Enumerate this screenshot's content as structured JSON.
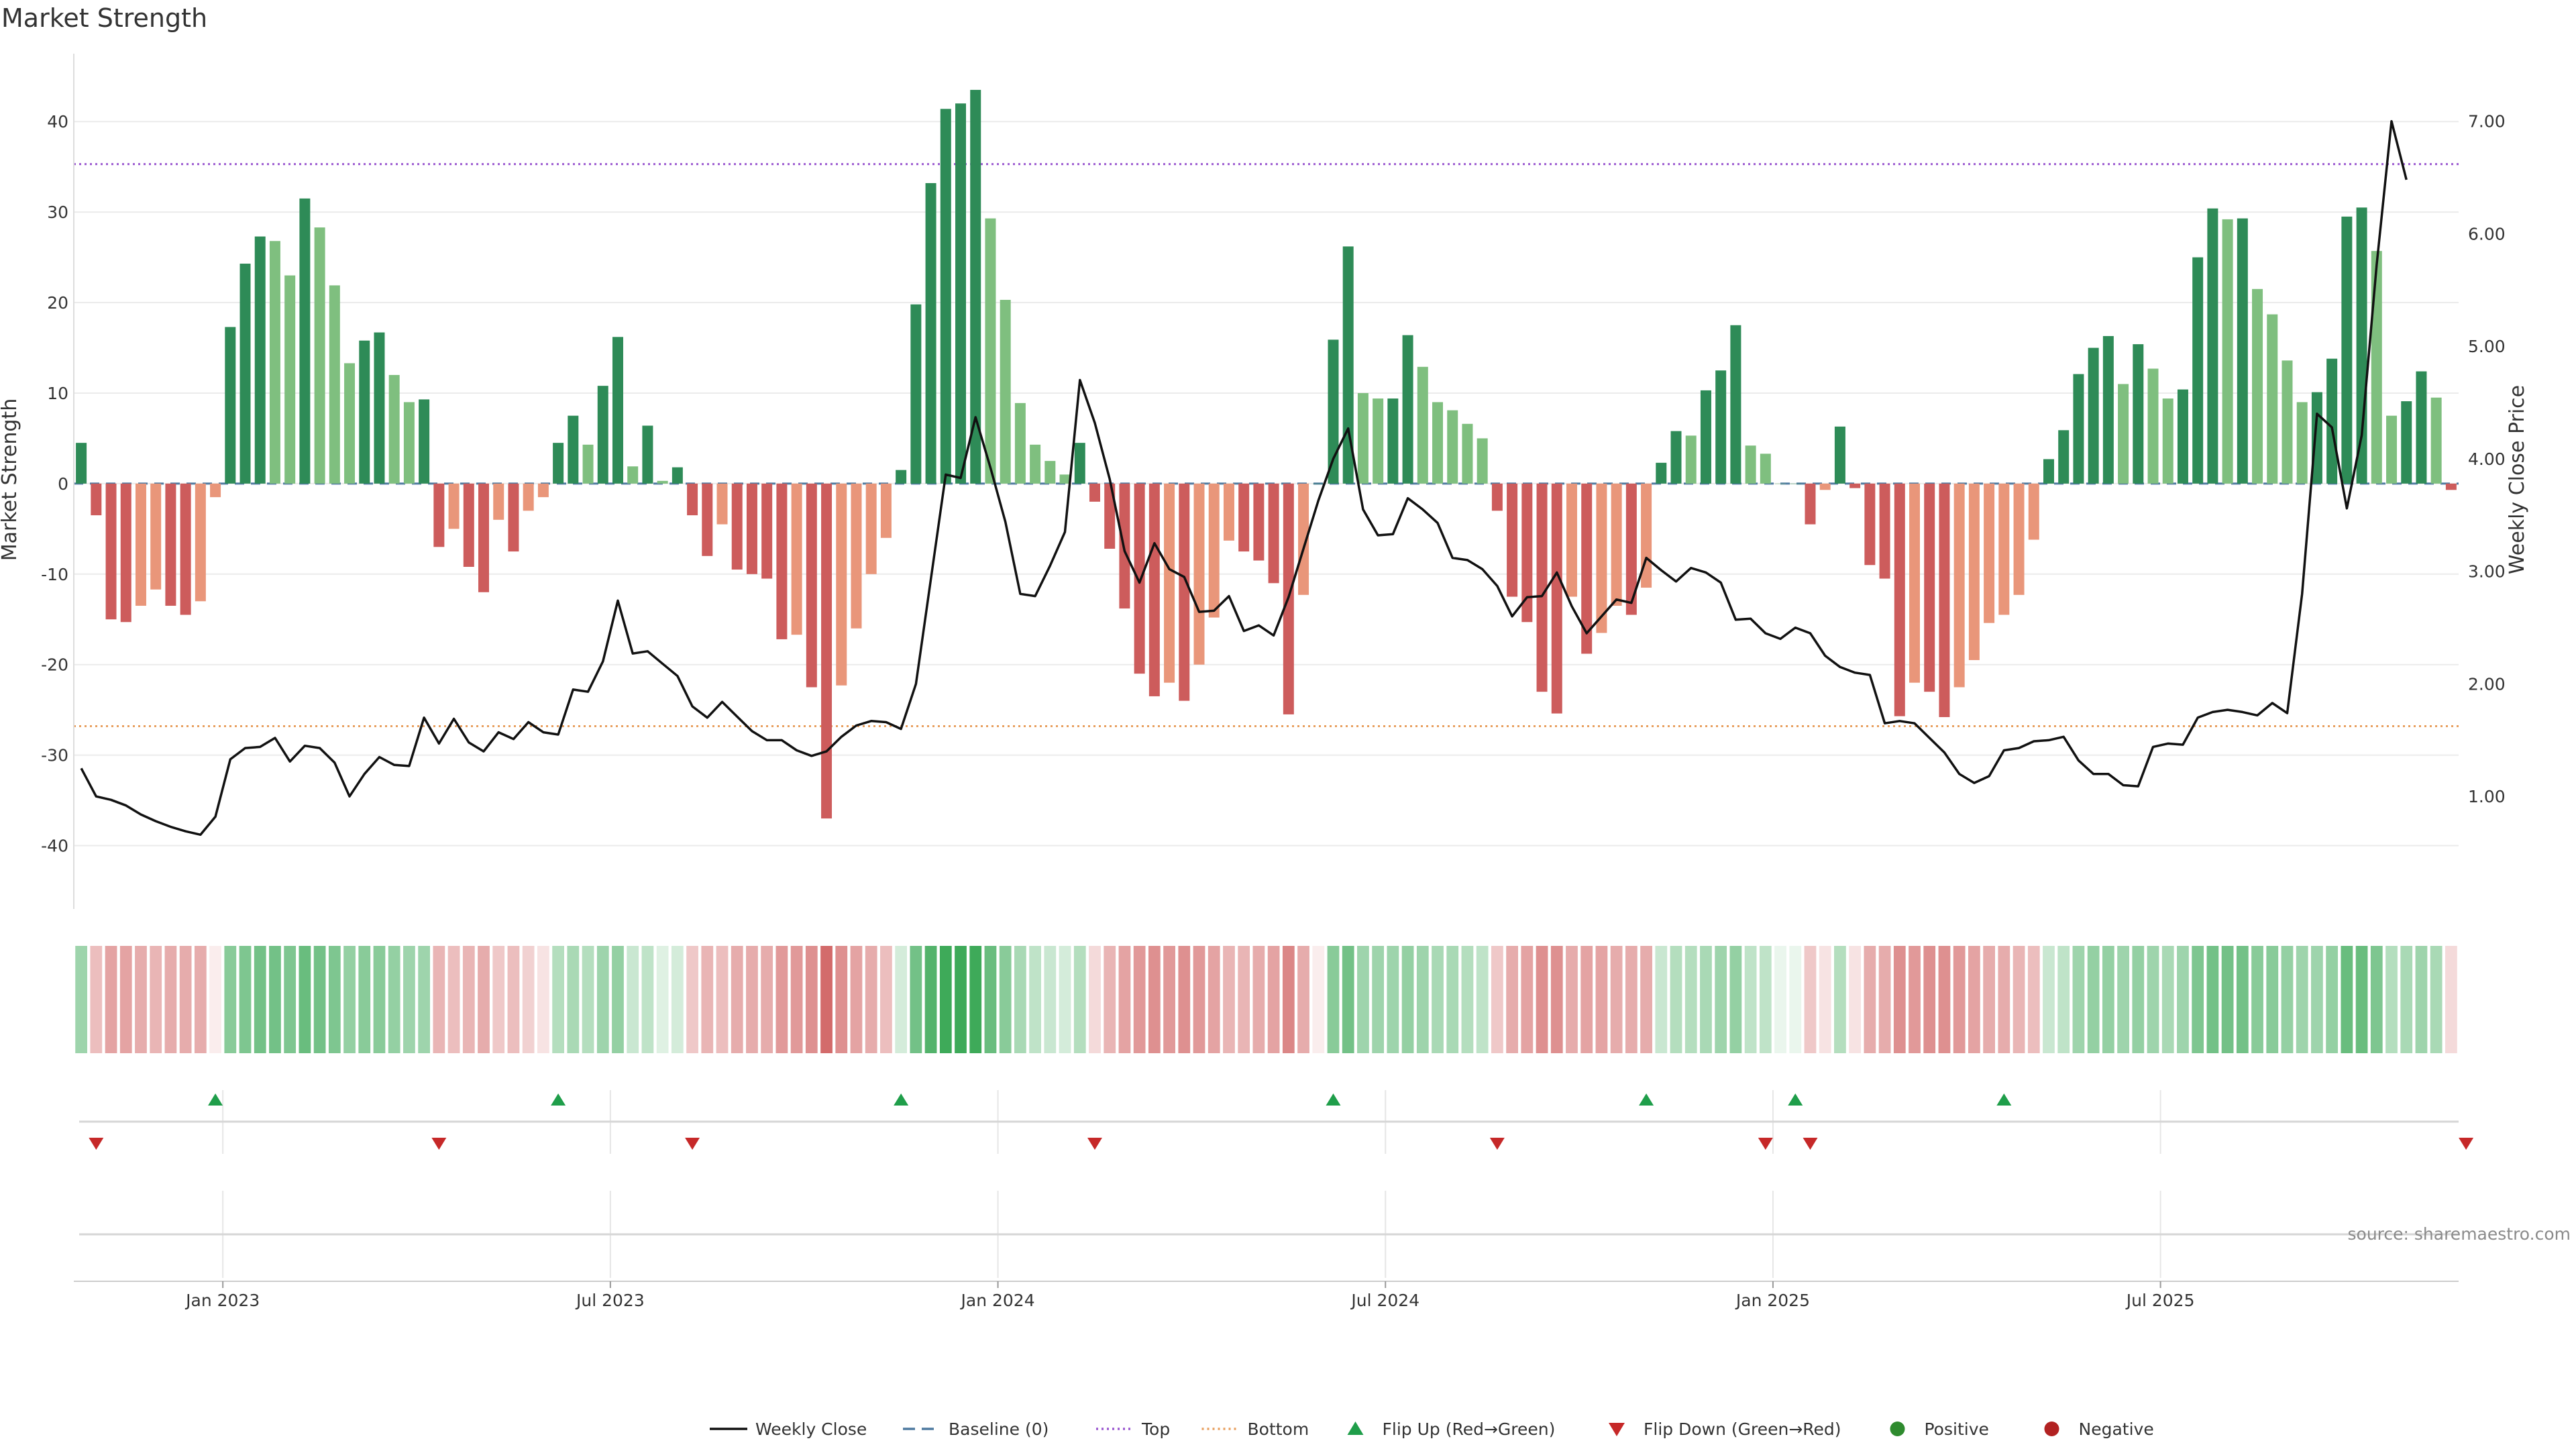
{
  "chart_data": {
    "type": "bar",
    "title": "Market Strength",
    "ylabel_left": "Market Strength",
    "ylabel_right": "Weekly Close Price",
    "source": "source: sharemaestro.com",
    "x_ticks": [
      "Jan 2023",
      "Jul 2023",
      "Jan 2024",
      "Jul 2024",
      "Jan 2025",
      "Jul 2025"
    ],
    "x_tick_index": [
      9.5,
      35.5,
      61.5,
      87.5,
      113.5,
      139.5
    ],
    "y_left_ticks": [
      40,
      30,
      20,
      10,
      0,
      -10,
      -20,
      -30,
      -40
    ],
    "y_left_range": [
      -47,
      47.5
    ],
    "y_right_ticks": [
      "7.00",
      "6.00",
      "5.00",
      "4.00",
      "3.00",
      "2.00",
      "1.00"
    ],
    "y_right_range": [
      0.0,
      7.6
    ],
    "top_line": 35.3,
    "bottom_line": -26.8,
    "colors": {
      "pos_strong": "#2e8b57",
      "pos_weak": "#7fbf7f",
      "neg_strong": "#cd5c5c",
      "neg_weak": "#e9967a",
      "close": "#111111",
      "top": "#9b59d0",
      "bottom": "#e8a060",
      "baseline": "#4f7aa0",
      "flip_up": "#1f9e4a",
      "flip_down": "#c62828"
    },
    "series": [
      {
        "name": "Market Strength",
        "values": [
          4.5,
          -3.5,
          -15,
          -15.3,
          -13.5,
          -11.7,
          -13.5,
          -14.5,
          -13,
          -1.5,
          17.3,
          24.3,
          27.3,
          26.8,
          23,
          31.5,
          28.3,
          21.9,
          13.3,
          15.8,
          16.7,
          12,
          9,
          9.3,
          -7,
          -5,
          -9.2,
          -12,
          -4,
          -7.5,
          -3,
          -1.5,
          4.5,
          7.5,
          4.3,
          10.8,
          16.2,
          1.9,
          6.4,
          0.3,
          1.8,
          -3.5,
          -8,
          -4.5,
          -9.5,
          -10,
          -10.5,
          -17.2,
          -16.7,
          -22.5,
          -37,
          -22.3,
          -16,
          -10,
          -6,
          1.5,
          19.8,
          33.2,
          41.4,
          42,
          43.5,
          29.3,
          20.3,
          8.9,
          4.3,
          2.5,
          1,
          4.5,
          -2,
          -7.2,
          -13.8,
          -21,
          -23.5,
          -22,
          -24,
          -20,
          -14.8,
          -6.3,
          -7.5,
          -8.5,
          -11,
          -25.5,
          -12.3,
          0,
          15.9,
          26.2,
          10,
          9.4,
          9.4,
          16.4,
          12.9,
          9,
          8.1,
          6.6,
          5,
          -3,
          -12.5,
          -15.3,
          -23,
          -25.4,
          -12.5,
          -18.8,
          -16.5,
          -13.5,
          -14.5,
          -11.5,
          2.3,
          5.8,
          5.3,
          10.3,
          12.5,
          17.5,
          4.2,
          3.3,
          0,
          0,
          -4.5,
          -0.7,
          6.3,
          -0.5,
          -9,
          -10.5,
          -25.7,
          -22,
          -23,
          -25.8,
          -22.5,
          -19.5,
          -15.4,
          -14.5,
          -12.3,
          -6.2,
          2.7,
          5.9,
          12.1,
          15,
          16.3,
          11,
          15.4,
          12.7,
          9.4,
          10.4,
          25,
          30.4,
          29.2,
          29.3,
          21.5,
          18.7,
          13.6,
          9,
          10.1,
          13.8,
          29.5,
          30.5,
          25.7,
          7.5,
          9.1,
          12.4,
          9.5,
          -0.7
        ]
      },
      {
        "name": "Weekly Close",
        "values": [
          1.25,
          1.0,
          0.97,
          0.92,
          0.84,
          0.78,
          0.73,
          0.69,
          0.66,
          0.82,
          1.33,
          1.43,
          1.44,
          1.52,
          1.31,
          1.45,
          1.43,
          1.3,
          1.0,
          1.2,
          1.35,
          1.28,
          1.27,
          1.7,
          1.47,
          1.69,
          1.48,
          1.4,
          1.57,
          1.51,
          1.66,
          1.57,
          1.55,
          1.95,
          1.93,
          2.2,
          2.74,
          2.27,
          2.29,
          2.18,
          2.07,
          1.8,
          1.7,
          1.84,
          1.71,
          1.58,
          1.5,
          1.5,
          1.41,
          1.36,
          1.4,
          1.53,
          1.63,
          1.67,
          1.66,
          1.6,
          2.0,
          2.93,
          3.86,
          3.83,
          4.37,
          3.92,
          3.44,
          2.8,
          2.78,
          3.05,
          3.35,
          4.7,
          4.32,
          3.82,
          3.18,
          2.9,
          3.25,
          3.02,
          2.95,
          2.64,
          2.65,
          2.78,
          2.47,
          2.52,
          2.43,
          2.77,
          3.2,
          3.63,
          4.0,
          4.27,
          3.55,
          3.32,
          3.33,
          3.65,
          3.55,
          3.43,
          3.12,
          3.1,
          3.02,
          2.87,
          2.6,
          2.77,
          2.78,
          2.99,
          2.69,
          2.45,
          2.6,
          2.75,
          2.72,
          3.12,
          3.01,
          2.91,
          3.03,
          2.99,
          2.9,
          2.57,
          2.58,
          2.45,
          2.4,
          2.5,
          2.45,
          2.25,
          2.15,
          2.1,
          2.08,
          1.65,
          1.67,
          1.65,
          1.52,
          1.39,
          1.2,
          1.12,
          1.18,
          1.41,
          1.43,
          1.49,
          1.5,
          1.53,
          1.32,
          1.2,
          1.2,
          1.1,
          1.09,
          1.44,
          1.47,
          1.46,
          1.7,
          1.75,
          1.77,
          1.75,
          1.72,
          1.83,
          1.74,
          2.8,
          4.4,
          4.28,
          3.56,
          4.21,
          5.72,
          7.0,
          6.48
        ]
      }
    ],
    "heat_strip": [
      0.45,
      -0.35,
      -0.5,
      -0.5,
      -0.45,
      -0.4,
      -0.45,
      -0.45,
      -0.45,
      -0.1,
      0.55,
      0.6,
      0.65,
      0.65,
      0.6,
      0.7,
      0.65,
      0.6,
      0.5,
      0.55,
      0.55,
      0.5,
      0.45,
      0.45,
      -0.4,
      -0.35,
      -0.4,
      -0.45,
      -0.3,
      -0.35,
      -0.25,
      -0.15,
      0.35,
      0.4,
      0.35,
      0.45,
      0.5,
      0.25,
      0.3,
      0.15,
      0.2,
      -0.3,
      -0.4,
      -0.35,
      -0.45,
      -0.45,
      -0.45,
      -0.55,
      -0.55,
      -0.6,
      -0.8,
      -0.6,
      -0.5,
      -0.45,
      -0.35,
      0.2,
      0.65,
      0.8,
      0.9,
      0.9,
      0.9,
      0.7,
      0.55,
      0.4,
      0.3,
      0.25,
      0.2,
      0.35,
      -0.2,
      -0.4,
      -0.5,
      -0.55,
      -0.6,
      -0.55,
      -0.6,
      -0.55,
      -0.5,
      -0.4,
      -0.4,
      -0.45,
      -0.5,
      -0.65,
      -0.45,
      -0.1,
      0.55,
      0.65,
      0.45,
      0.45,
      0.45,
      0.5,
      0.45,
      0.4,
      0.4,
      0.35,
      0.3,
      -0.3,
      -0.45,
      -0.5,
      -0.6,
      -0.6,
      -0.45,
      -0.5,
      -0.5,
      -0.45,
      -0.45,
      -0.45,
      0.25,
      0.35,
      0.35,
      0.4,
      0.45,
      0.5,
      0.3,
      0.3,
      0.1,
      0.1,
      -0.3,
      -0.15,
      0.35,
      -0.15,
      -0.45,
      -0.45,
      -0.6,
      -0.55,
      -0.6,
      -0.6,
      -0.55,
      -0.5,
      -0.45,
      -0.45,
      -0.4,
      -0.35,
      0.25,
      0.3,
      0.45,
      0.5,
      0.5,
      0.45,
      0.5,
      0.45,
      0.4,
      0.45,
      0.6,
      0.65,
      0.65,
      0.65,
      0.55,
      0.55,
      0.5,
      0.45,
      0.45,
      0.5,
      0.7,
      0.7,
      0.6,
      0.35,
      0.4,
      0.45,
      0.4,
      -0.2
    ],
    "flip_up_idx": [
      9,
      32,
      55,
      84,
      105,
      115,
      129
    ],
    "flip_down_idx": [
      1,
      24,
      41,
      68,
      95,
      113,
      116,
      160
    ],
    "legend": [
      {
        "label": "Weekly Close",
        "kind": "line"
      },
      {
        "label": "Baseline (0)",
        "kind": "dash"
      },
      {
        "label": "Top",
        "kind": "dotted-top"
      },
      {
        "label": "Bottom",
        "kind": "dotted-bottom"
      },
      {
        "label": "Flip Up (Red→Green)",
        "kind": "tri-up"
      },
      {
        "label": "Flip Down (Green→Red)",
        "kind": "tri-down"
      },
      {
        "label": "Positive",
        "kind": "dot-pos"
      },
      {
        "label": "Negative",
        "kind": "dot-neg"
      }
    ]
  }
}
